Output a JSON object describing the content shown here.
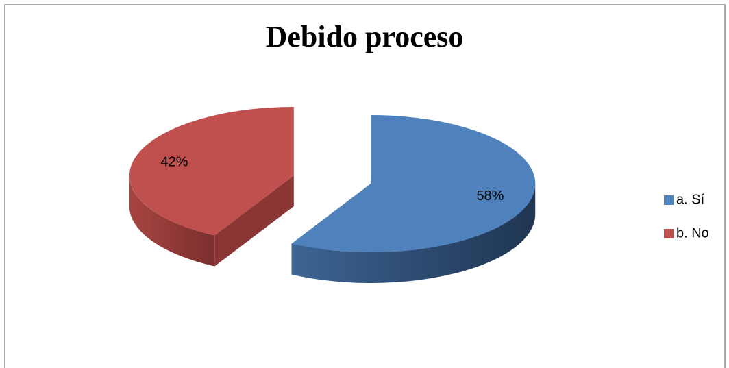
{
  "chart_data": {
    "type": "pie3d",
    "title": "Debido proceso",
    "categories": [
      "a. Sí",
      "b. No"
    ],
    "values": [
      58,
      42
    ],
    "value_labels": [
      "58%",
      "42%"
    ],
    "colors": [
      "#4f81bd",
      "#c0504d"
    ],
    "legend": "right"
  }
}
